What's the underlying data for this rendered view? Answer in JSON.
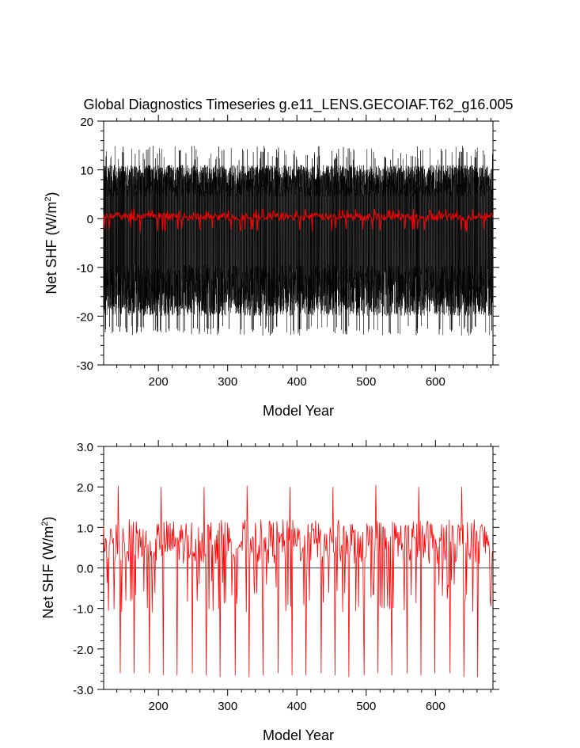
{
  "page_title": "Global Diagnostics Timeseries g.e11_LENS.GECOIAF.T62_g16.005",
  "chart_data": [
    {
      "type": "line",
      "ylabel": "Net SHF (W/m",
      "ylabel_sup": "2",
      "ylabel_close": ")",
      "xlabel": "Model Year",
      "xlim": [
        121,
        683
      ],
      "ylim": [
        -30,
        20
      ],
      "xticks": [
        200,
        300,
        400,
        500,
        600
      ],
      "xtick_labels": [
        "200",
        "300",
        "400",
        "500",
        "600"
      ],
      "yticks": [
        -30,
        -20,
        -10,
        0,
        10,
        20
      ],
      "ytick_labels": [
        "-30",
        "-20",
        "-10",
        "0",
        "10",
        "20"
      ],
      "grid": false,
      "series": [
        {
          "color": "#000000",
          "kind": "monthly",
          "envelope_min": [
            -22,
            -24
          ],
          "envelope_max": [
            12,
            15
          ],
          "typical_range": [
            -19,
            11
          ]
        },
        {
          "color": "#ff0000",
          "kind": "annual",
          "range": [
            -2.7,
            2.0
          ]
        }
      ],
      "reference_line_y": 0
    },
    {
      "type": "line",
      "ylabel": "Net SHF (W/m",
      "ylabel_sup": "2",
      "ylabel_close": ")",
      "xlabel": "Model Year",
      "xlim": [
        121,
        683
      ],
      "ylim": [
        -3.0,
        3.0
      ],
      "xticks": [
        200,
        300,
        400,
        500,
        600
      ],
      "xtick_labels": [
        "200",
        "300",
        "400",
        "500",
        "600"
      ],
      "yticks": [
        -3.0,
        -2.0,
        -1.0,
        0.0,
        1.0,
        2.0,
        3.0
      ],
      "ytick_labels": [
        "-3.0",
        "-2.0",
        "-1.0",
        "0.0",
        "1.0",
        "2.0",
        "3.0"
      ],
      "grid": false,
      "reference_line_y": 0.0,
      "series": [
        {
          "color": "#ff0000",
          "kind": "annual",
          "forcing_cycle_years": 62,
          "cycle_start_year": 121,
          "large_negative_dips": [
            {
              "x": 145,
              "y": -2.6
            },
            {
              "x": 165,
              "y": -2.6
            },
            {
              "x": 187,
              "y": -2.6
            },
            {
              "x": 207,
              "y": -2.65
            },
            {
              "x": 227,
              "y": -2.65
            },
            {
              "x": 249,
              "y": -2.6
            },
            {
              "x": 269,
              "y": -2.65
            },
            {
              "x": 289,
              "y": -2.7
            },
            {
              "x": 311,
              "y": -2.65
            },
            {
              "x": 331,
              "y": -2.7
            },
            {
              "x": 351,
              "y": -2.65
            },
            {
              "x": 373,
              "y": -2.6
            },
            {
              "x": 393,
              "y": -2.65
            },
            {
              "x": 413,
              "y": -2.65
            },
            {
              "x": 435,
              "y": -2.6
            },
            {
              "x": 455,
              "y": -2.65
            },
            {
              "x": 475,
              "y": -2.7
            },
            {
              "x": 497,
              "y": -2.65
            },
            {
              "x": 517,
              "y": -2.6
            },
            {
              "x": 537,
              "y": -2.65
            },
            {
              "x": 559,
              "y": -2.6
            },
            {
              "x": 579,
              "y": -2.65
            },
            {
              "x": 599,
              "y": -2.6
            },
            {
              "x": 621,
              "y": -2.6
            },
            {
              "x": 641,
              "y": -2.7
            },
            {
              "x": 661,
              "y": -2.7
            }
          ],
          "peaks": [
            {
              "x": 142,
              "y": 2.03
            },
            {
              "x": 204,
              "y": 2.0
            },
            {
              "x": 266,
              "y": 2.0
            },
            {
              "x": 328,
              "y": 2.03
            },
            {
              "x": 390,
              "y": 2.0
            },
            {
              "x": 452,
              "y": 2.0
            },
            {
              "x": 514,
              "y": 2.05
            },
            {
              "x": 576,
              "y": 2.0
            },
            {
              "x": 638,
              "y": 2.0
            }
          ],
          "baseline_range": [
            0.0,
            1.3
          ]
        }
      ]
    }
  ]
}
